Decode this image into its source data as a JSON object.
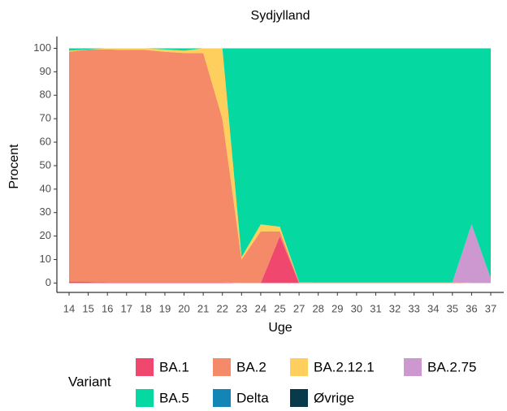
{
  "chart_data": {
    "type": "stacked_area",
    "title": "Sydjylland",
    "x_label": "Uge",
    "y_label": "Procent",
    "legend_title": "Variant",
    "categories": [
      "14",
      "15",
      "16",
      "17",
      "18",
      "19",
      "20",
      "21",
      "22",
      "23",
      "24",
      "25",
      "27",
      "28",
      "29",
      "30",
      "31",
      "32",
      "33",
      "34",
      "35",
      "36",
      "37"
    ],
    "series": [
      {
        "name": "BA.1",
        "color": "#f0476f",
        "values": [
          0.5,
          0.5,
          0.3,
          0.3,
          0.3,
          0.3,
          0.3,
          0.3,
          0.3,
          0,
          0,
          20,
          0,
          0,
          0,
          0,
          0,
          0,
          0,
          0,
          0,
          0,
          0
        ]
      },
      {
        "name": "BA.2",
        "color": "#f48a67",
        "values": [
          98,
          99,
          99.2,
          99,
          99,
          98.2,
          97.7,
          97.7,
          69.7,
          10,
          22,
          2,
          0.5,
          0.3,
          0.3,
          0.3,
          0.3,
          0.3,
          0.3,
          0.3,
          0.3,
          0,
          0
        ]
      },
      {
        "name": "BA.2.12.1",
        "color": "#fecf5c",
        "values": [
          0.5,
          0,
          0.5,
          0.7,
          0.7,
          1,
          1,
          2,
          30,
          1,
          3,
          2,
          0,
          0,
          0,
          0,
          0,
          0,
          0,
          0,
          0,
          0,
          0
        ]
      },
      {
        "name": "BA.2.75",
        "color": "#cc98cf",
        "values": [
          0,
          0,
          0,
          0,
          0,
          0,
          0,
          0,
          0,
          0,
          0,
          0,
          0,
          0,
          0,
          0,
          0,
          0,
          0,
          0,
          0,
          25,
          2
        ]
      },
      {
        "name": "BA.5",
        "color": "#05d8a0",
        "values": [
          1,
          0.5,
          0,
          0,
          0,
          0.5,
          1,
          0,
          0,
          89,
          75,
          76,
          99.5,
          99.7,
          99.7,
          99.7,
          99.7,
          99.7,
          99.7,
          99.7,
          99.7,
          75,
          98
        ]
      },
      {
        "name": "Delta",
        "color": "#1486b5",
        "values": [
          0,
          0,
          0,
          0,
          0,
          0,
          0,
          0,
          0,
          0,
          0,
          0,
          0,
          0,
          0,
          0,
          0,
          0,
          0,
          0,
          0,
          0,
          0
        ]
      },
      {
        "name": "Øvrige",
        "color": "#073b4c",
        "values": [
          0,
          0,
          0,
          0,
          0,
          0,
          0,
          0,
          0,
          0,
          0,
          0,
          0,
          0,
          0,
          0,
          0,
          0,
          0,
          0,
          0,
          0,
          0
        ]
      }
    ],
    "ylim": [
      -4,
      105
    ],
    "yticks": [
      0,
      10,
      20,
      30,
      40,
      50,
      60,
      70,
      80,
      90,
      100
    ],
    "grid": false
  }
}
